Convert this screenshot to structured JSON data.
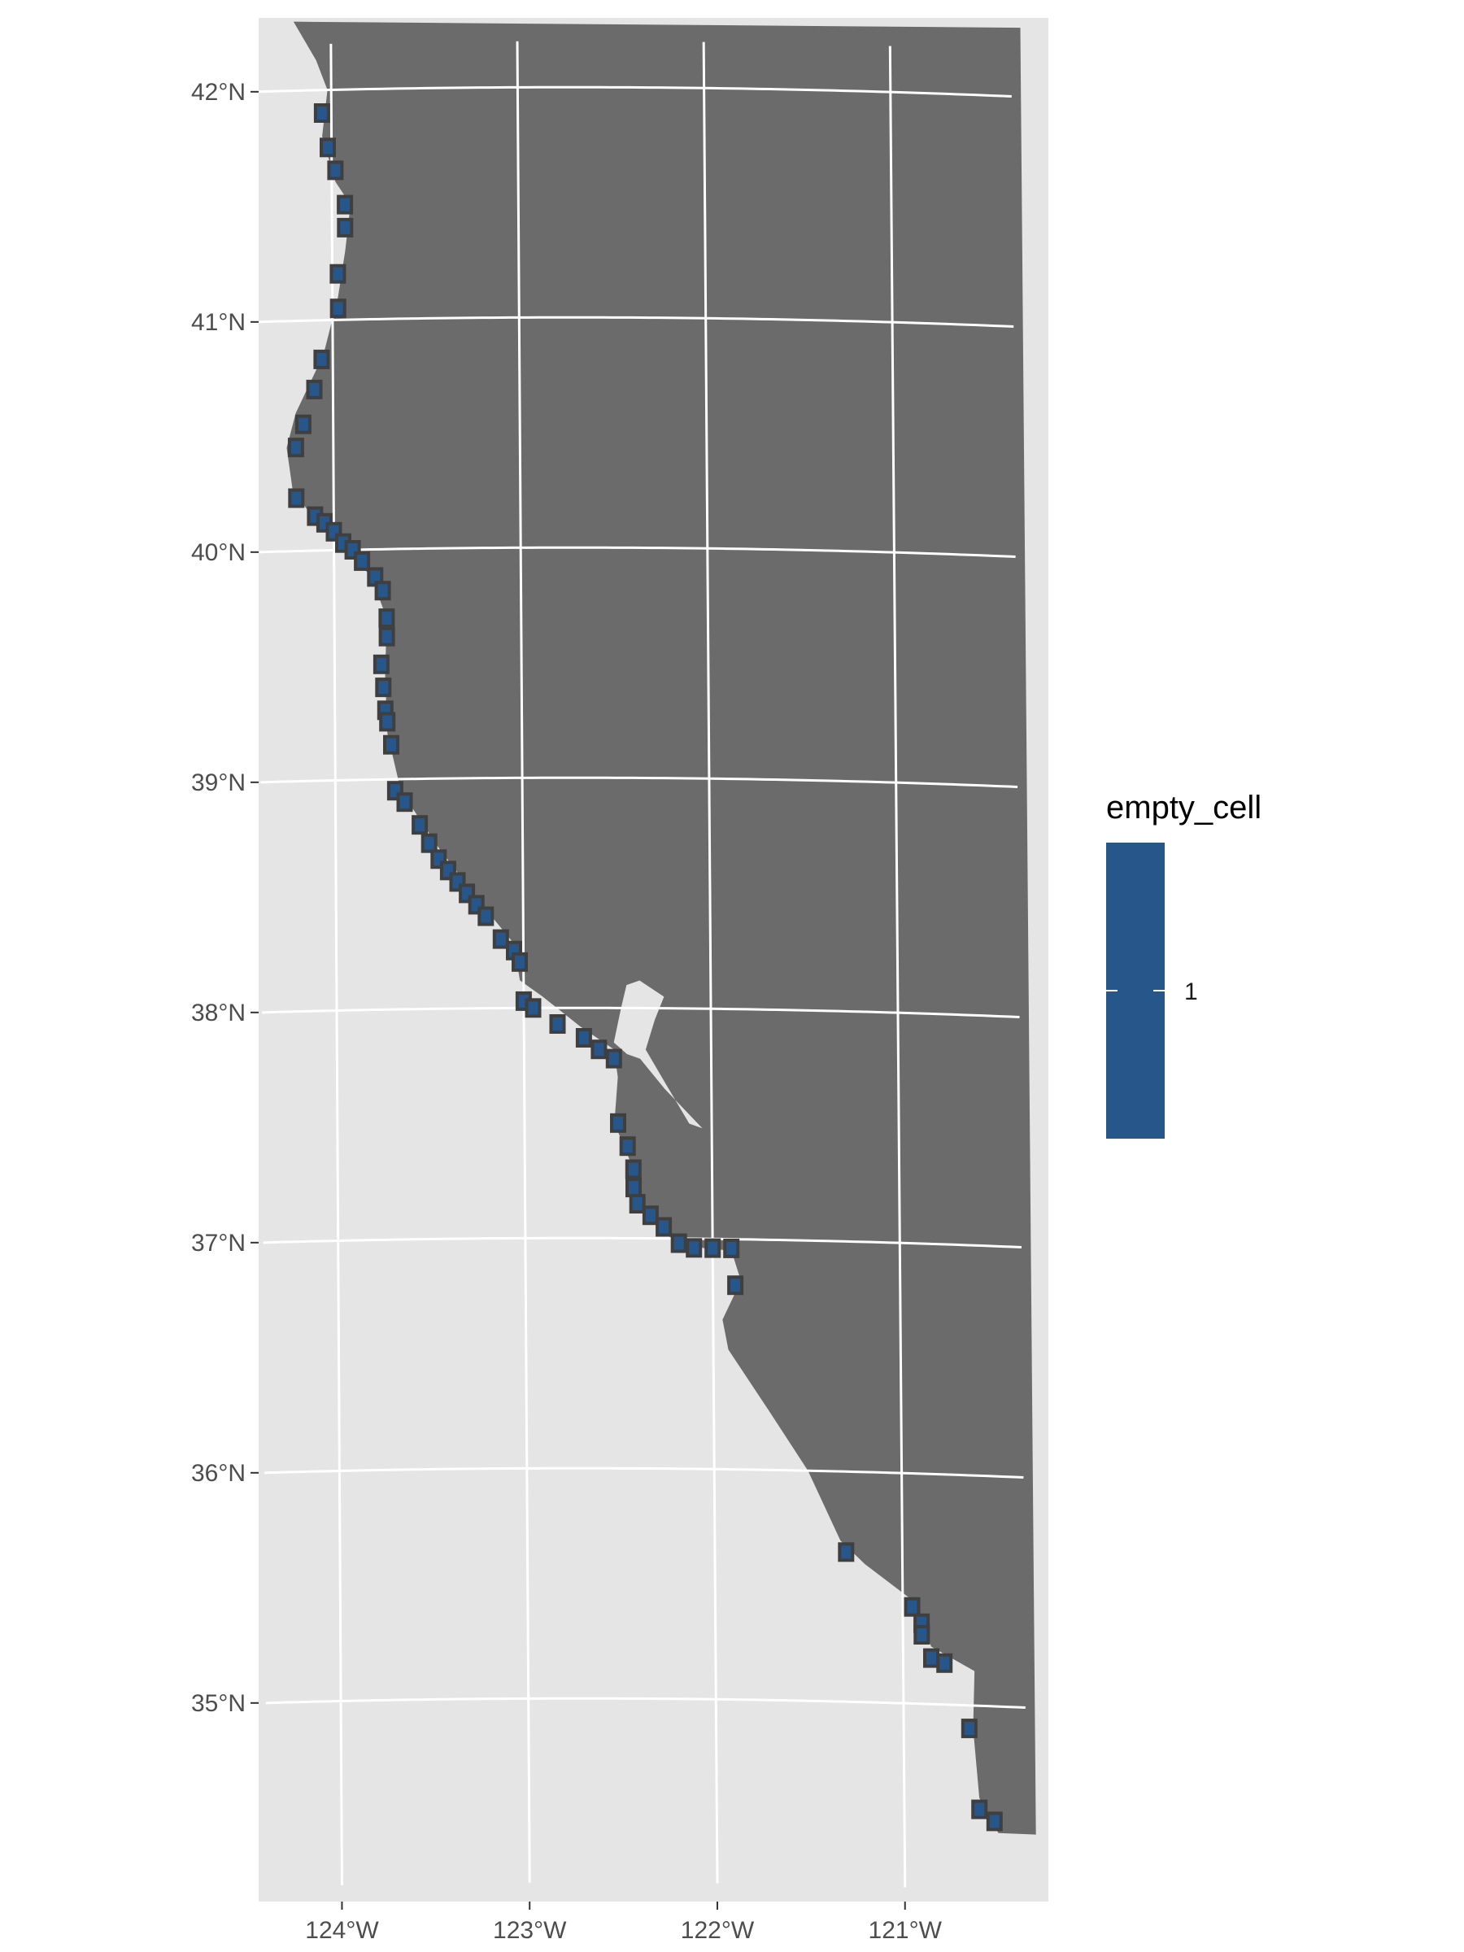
{
  "chart_data": {
    "type": "map",
    "x_axis": {
      "ticks": [
        {
          "value": -124,
          "label": "124°W"
        },
        {
          "value": -123,
          "label": "123°W"
        },
        {
          "value": -122,
          "label": "122°W"
        },
        {
          "value": -121,
          "label": "121°W"
        }
      ]
    },
    "y_axis": {
      "ticks": [
        {
          "value": 42,
          "label": "42°N"
        },
        {
          "value": 41,
          "label": "41°N"
        },
        {
          "value": 40,
          "label": "40°N"
        },
        {
          "value": 39,
          "label": "39°N"
        },
        {
          "value": 38,
          "label": "38°N"
        },
        {
          "value": 37,
          "label": "37°N"
        },
        {
          "value": 36,
          "label": "36°N"
        },
        {
          "value": 35,
          "label": "35°N"
        }
      ]
    },
    "xlim": [
      -124.4,
      -120.35
    ],
    "ylim": [
      34.2,
      42.25
    ],
    "grid": true,
    "colors": {
      "panel_background": "#e5e5e5",
      "land": "#6b6b6b",
      "grid_line": "#ffffff",
      "cell_fill": "#27568a",
      "cell_outline": "#3f3f3f"
    },
    "legend": {
      "title": "empty_cell",
      "position": "right",
      "entries": [
        {
          "label": "1",
          "value": 1
        }
      ]
    },
    "cells": [
      [
        -124.05,
        41.9
      ],
      [
        -124.02,
        41.75
      ],
      [
        -123.98,
        41.65
      ],
      [
        -123.93,
        41.5
      ],
      [
        -123.93,
        41.4
      ],
      [
        -123.97,
        41.2
      ],
      [
        -123.97,
        41.05
      ],
      [
        -124.06,
        40.83
      ],
      [
        -124.1,
        40.7
      ],
      [
        -124.16,
        40.55
      ],
      [
        -124.2,
        40.45
      ],
      [
        -124.2,
        40.23
      ],
      [
        -124.1,
        40.15
      ],
      [
        -124.05,
        40.12
      ],
      [
        -124.0,
        40.08
      ],
      [
        -123.95,
        40.03
      ],
      [
        -123.9,
        40.0
      ],
      [
        -123.85,
        39.95
      ],
      [
        -123.78,
        39.88
      ],
      [
        -123.74,
        39.82
      ],
      [
        -123.72,
        39.7
      ],
      [
        -123.72,
        39.62
      ],
      [
        -123.75,
        39.5
      ],
      [
        -123.74,
        39.4
      ],
      [
        -123.73,
        39.3
      ],
      [
        -123.72,
        39.25
      ],
      [
        -123.7,
        39.15
      ],
      [
        -123.68,
        38.95
      ],
      [
        -123.63,
        38.9
      ],
      [
        -123.55,
        38.8
      ],
      [
        -123.5,
        38.72
      ],
      [
        -123.45,
        38.65
      ],
      [
        -123.4,
        38.6
      ],
      [
        -123.35,
        38.55
      ],
      [
        -123.3,
        38.5
      ],
      [
        -123.25,
        38.45
      ],
      [
        -123.2,
        38.4
      ],
      [
        -123.12,
        38.3
      ],
      [
        -123.05,
        38.25
      ],
      [
        -123.02,
        38.2
      ],
      [
        -123.0,
        38.03
      ],
      [
        -122.95,
        38.0
      ],
      [
        -122.82,
        37.93
      ],
      [
        -122.68,
        37.87
      ],
      [
        -122.6,
        37.82
      ],
      [
        -122.52,
        37.78
      ],
      [
        -122.5,
        37.5
      ],
      [
        -122.45,
        37.4
      ],
      [
        -122.42,
        37.3
      ],
      [
        -122.42,
        37.22
      ],
      [
        -122.4,
        37.15
      ],
      [
        -122.33,
        37.1
      ],
      [
        -122.26,
        37.05
      ],
      [
        -122.18,
        36.98
      ],
      [
        -122.1,
        36.96
      ],
      [
        -122.0,
        36.96
      ],
      [
        -121.9,
        36.96
      ],
      [
        -121.88,
        36.8
      ],
      [
        -121.3,
        35.65
      ],
      [
        -120.95,
        35.42
      ],
      [
        -120.9,
        35.35
      ],
      [
        -120.9,
        35.3
      ],
      [
        -120.85,
        35.2
      ],
      [
        -120.78,
        35.18
      ],
      [
        -120.65,
        34.9
      ],
      [
        -120.6,
        34.55
      ],
      [
        -120.52,
        34.5
      ]
    ]
  }
}
